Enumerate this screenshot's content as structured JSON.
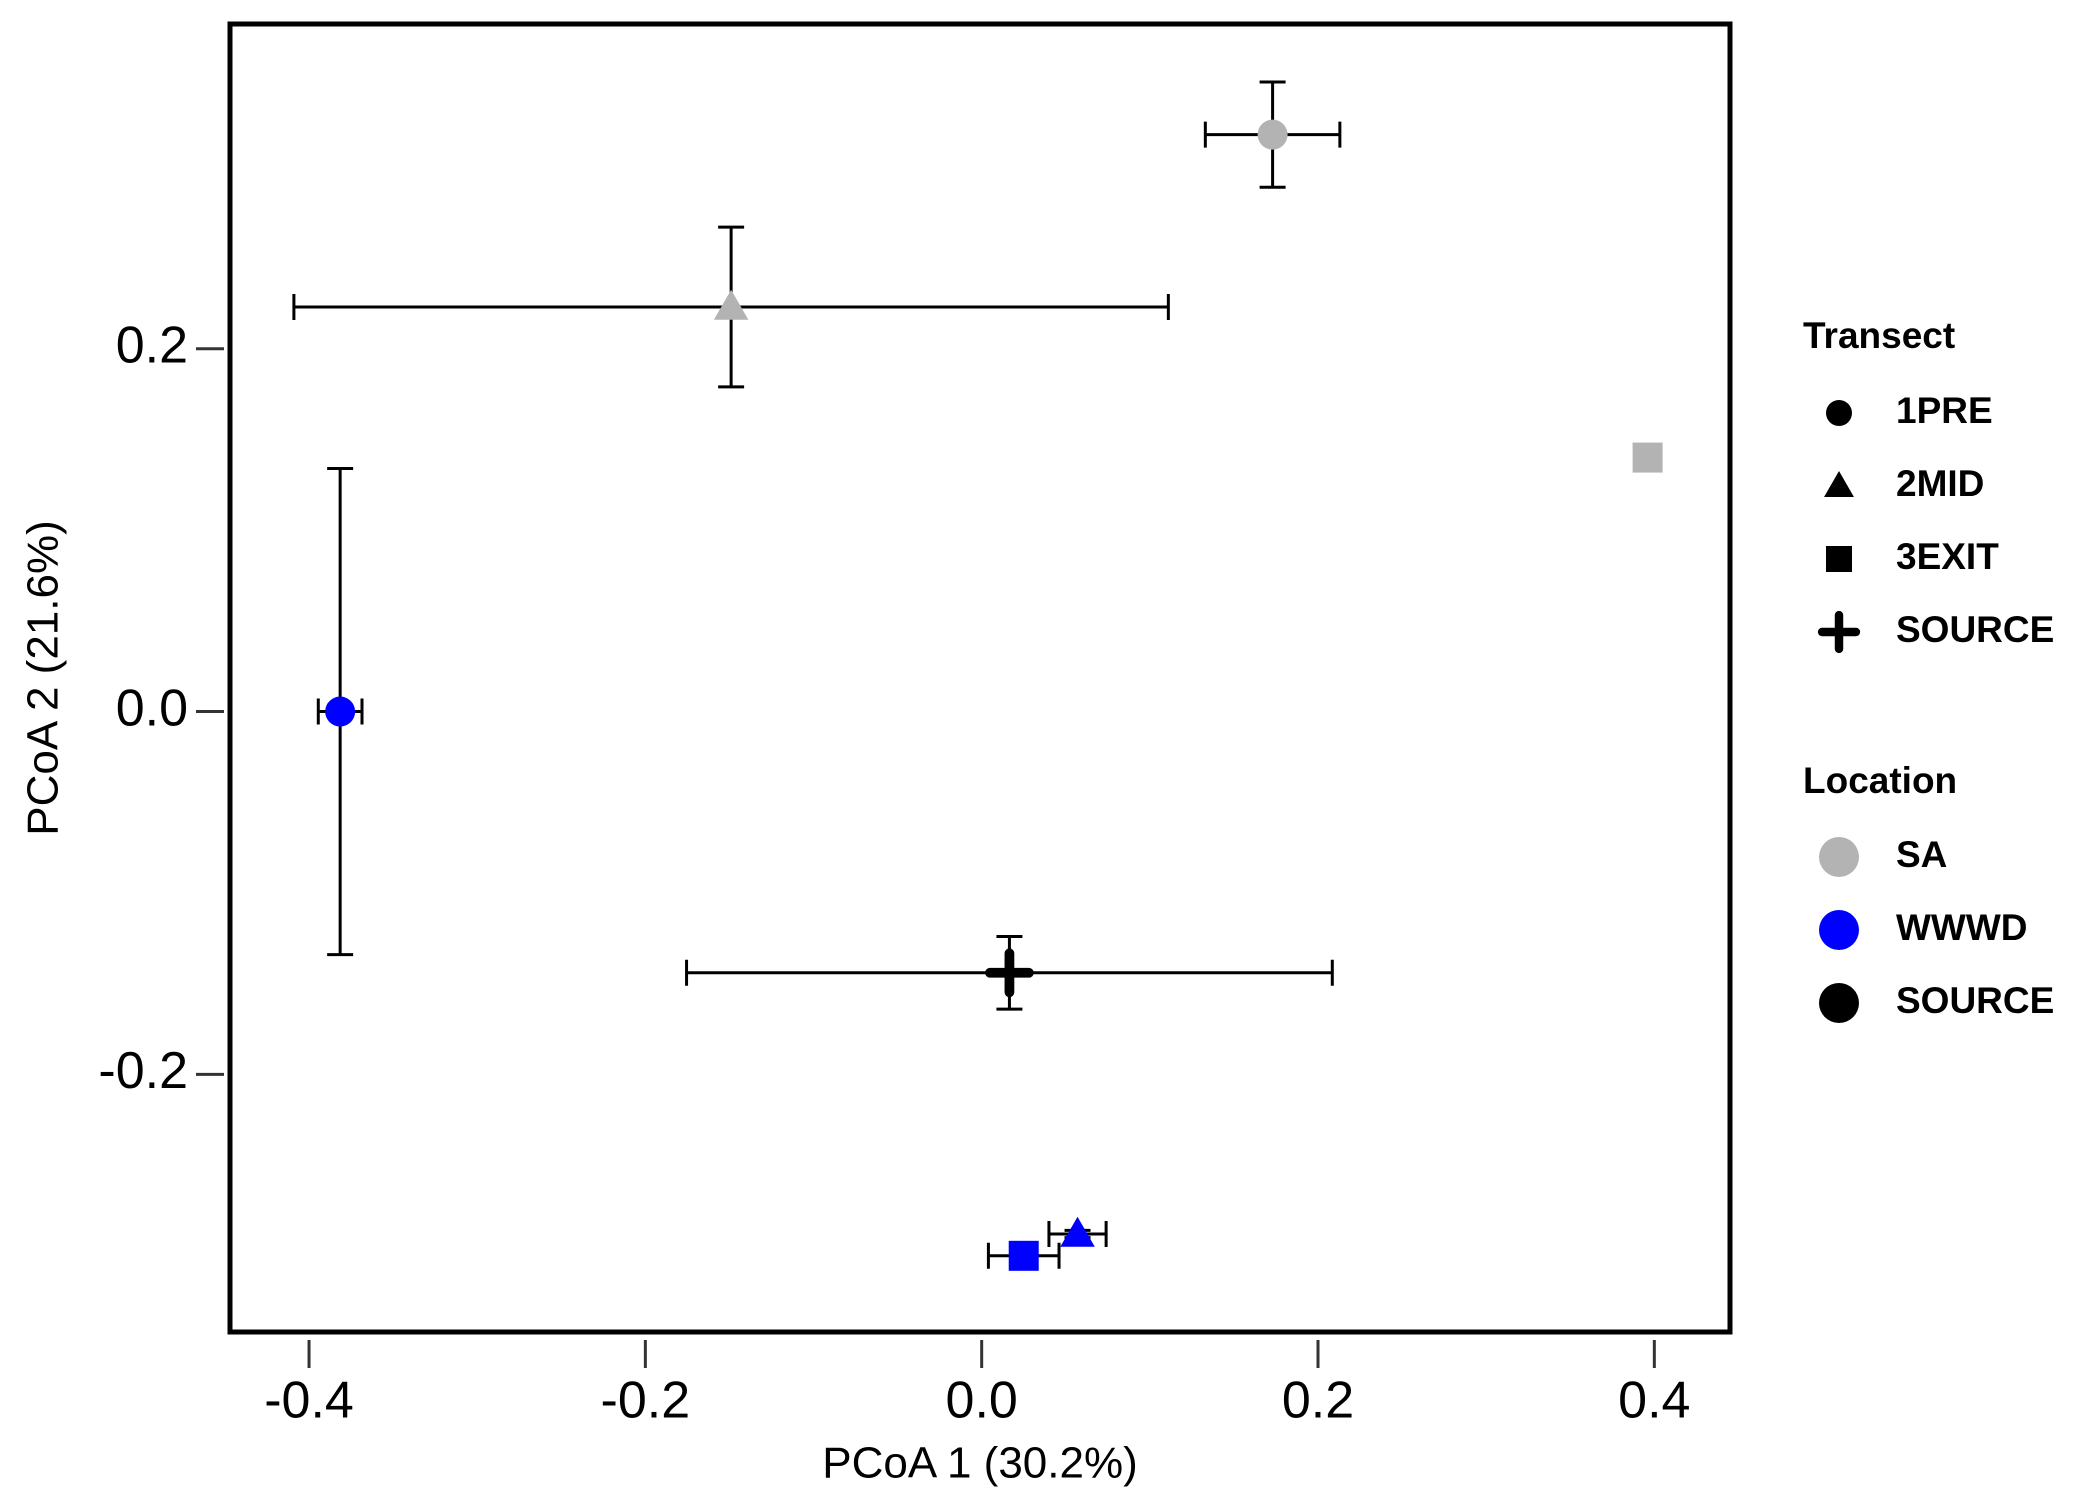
{
  "chart_data": {
    "type": "scatter",
    "x_label": "PCoA 1 (30.2%)",
    "y_label": "PCoA 2 (21.6%)",
    "xlim": [
      -0.447,
      0.445
    ],
    "ylim": [
      -0.342,
      0.379
    ],
    "xticks": [
      -0.4,
      -0.2,
      {
        "value": 0,
        "label": "0.0"
      },
      0.2,
      0.4
    ],
    "yticks": [
      -0.2,
      {
        "value": 0,
        "label": "0.0"
      },
      0.2
    ],
    "transect_title": "Transect",
    "transects": [
      {
        "name": "1PRE",
        "shape": "circle"
      },
      {
        "name": "2MID",
        "shape": "triangle"
      },
      {
        "name": "3EXIT",
        "shape": "square"
      },
      {
        "name": "SOURCE",
        "shape": "plus"
      }
    ],
    "location_title": "Location",
    "series": [
      {
        "name": "SA",
        "color": "#b3b3b3",
        "transect": [
          "1PRE",
          "2MID",
          "3EXIT"
        ],
        "x": [
          0.173,
          -0.149,
          0.396
        ],
        "values": [
          0.318,
          0.223,
          0.14
        ],
        "x_err": [
          0.04,
          0.26,
          0.001
        ],
        "y_err": [
          0.029,
          0.044,
          0.006
        ]
      },
      {
        "name": "WWWD",
        "color": "#0000ff",
        "transect": [
          "1PRE",
          "2MID",
          "3EXIT"
        ],
        "x": [
          -0.3815,
          0.057,
          0.025
        ],
        "values": [
          0.0,
          -0.288,
          -0.3
        ],
        "x_err": [
          0.013,
          0.017,
          0.021
        ],
        "y_err": [
          0.134,
          0.002,
          0.006
        ]
      },
      {
        "name": "SOURCE",
        "color": "#000000",
        "transect": [
          "SOURCE"
        ],
        "x": [
          0.0165
        ],
        "values": [
          -0.144
        ],
        "x_err": [
          0.192
        ],
        "y_err": [
          0.02
        ]
      }
    ]
  }
}
